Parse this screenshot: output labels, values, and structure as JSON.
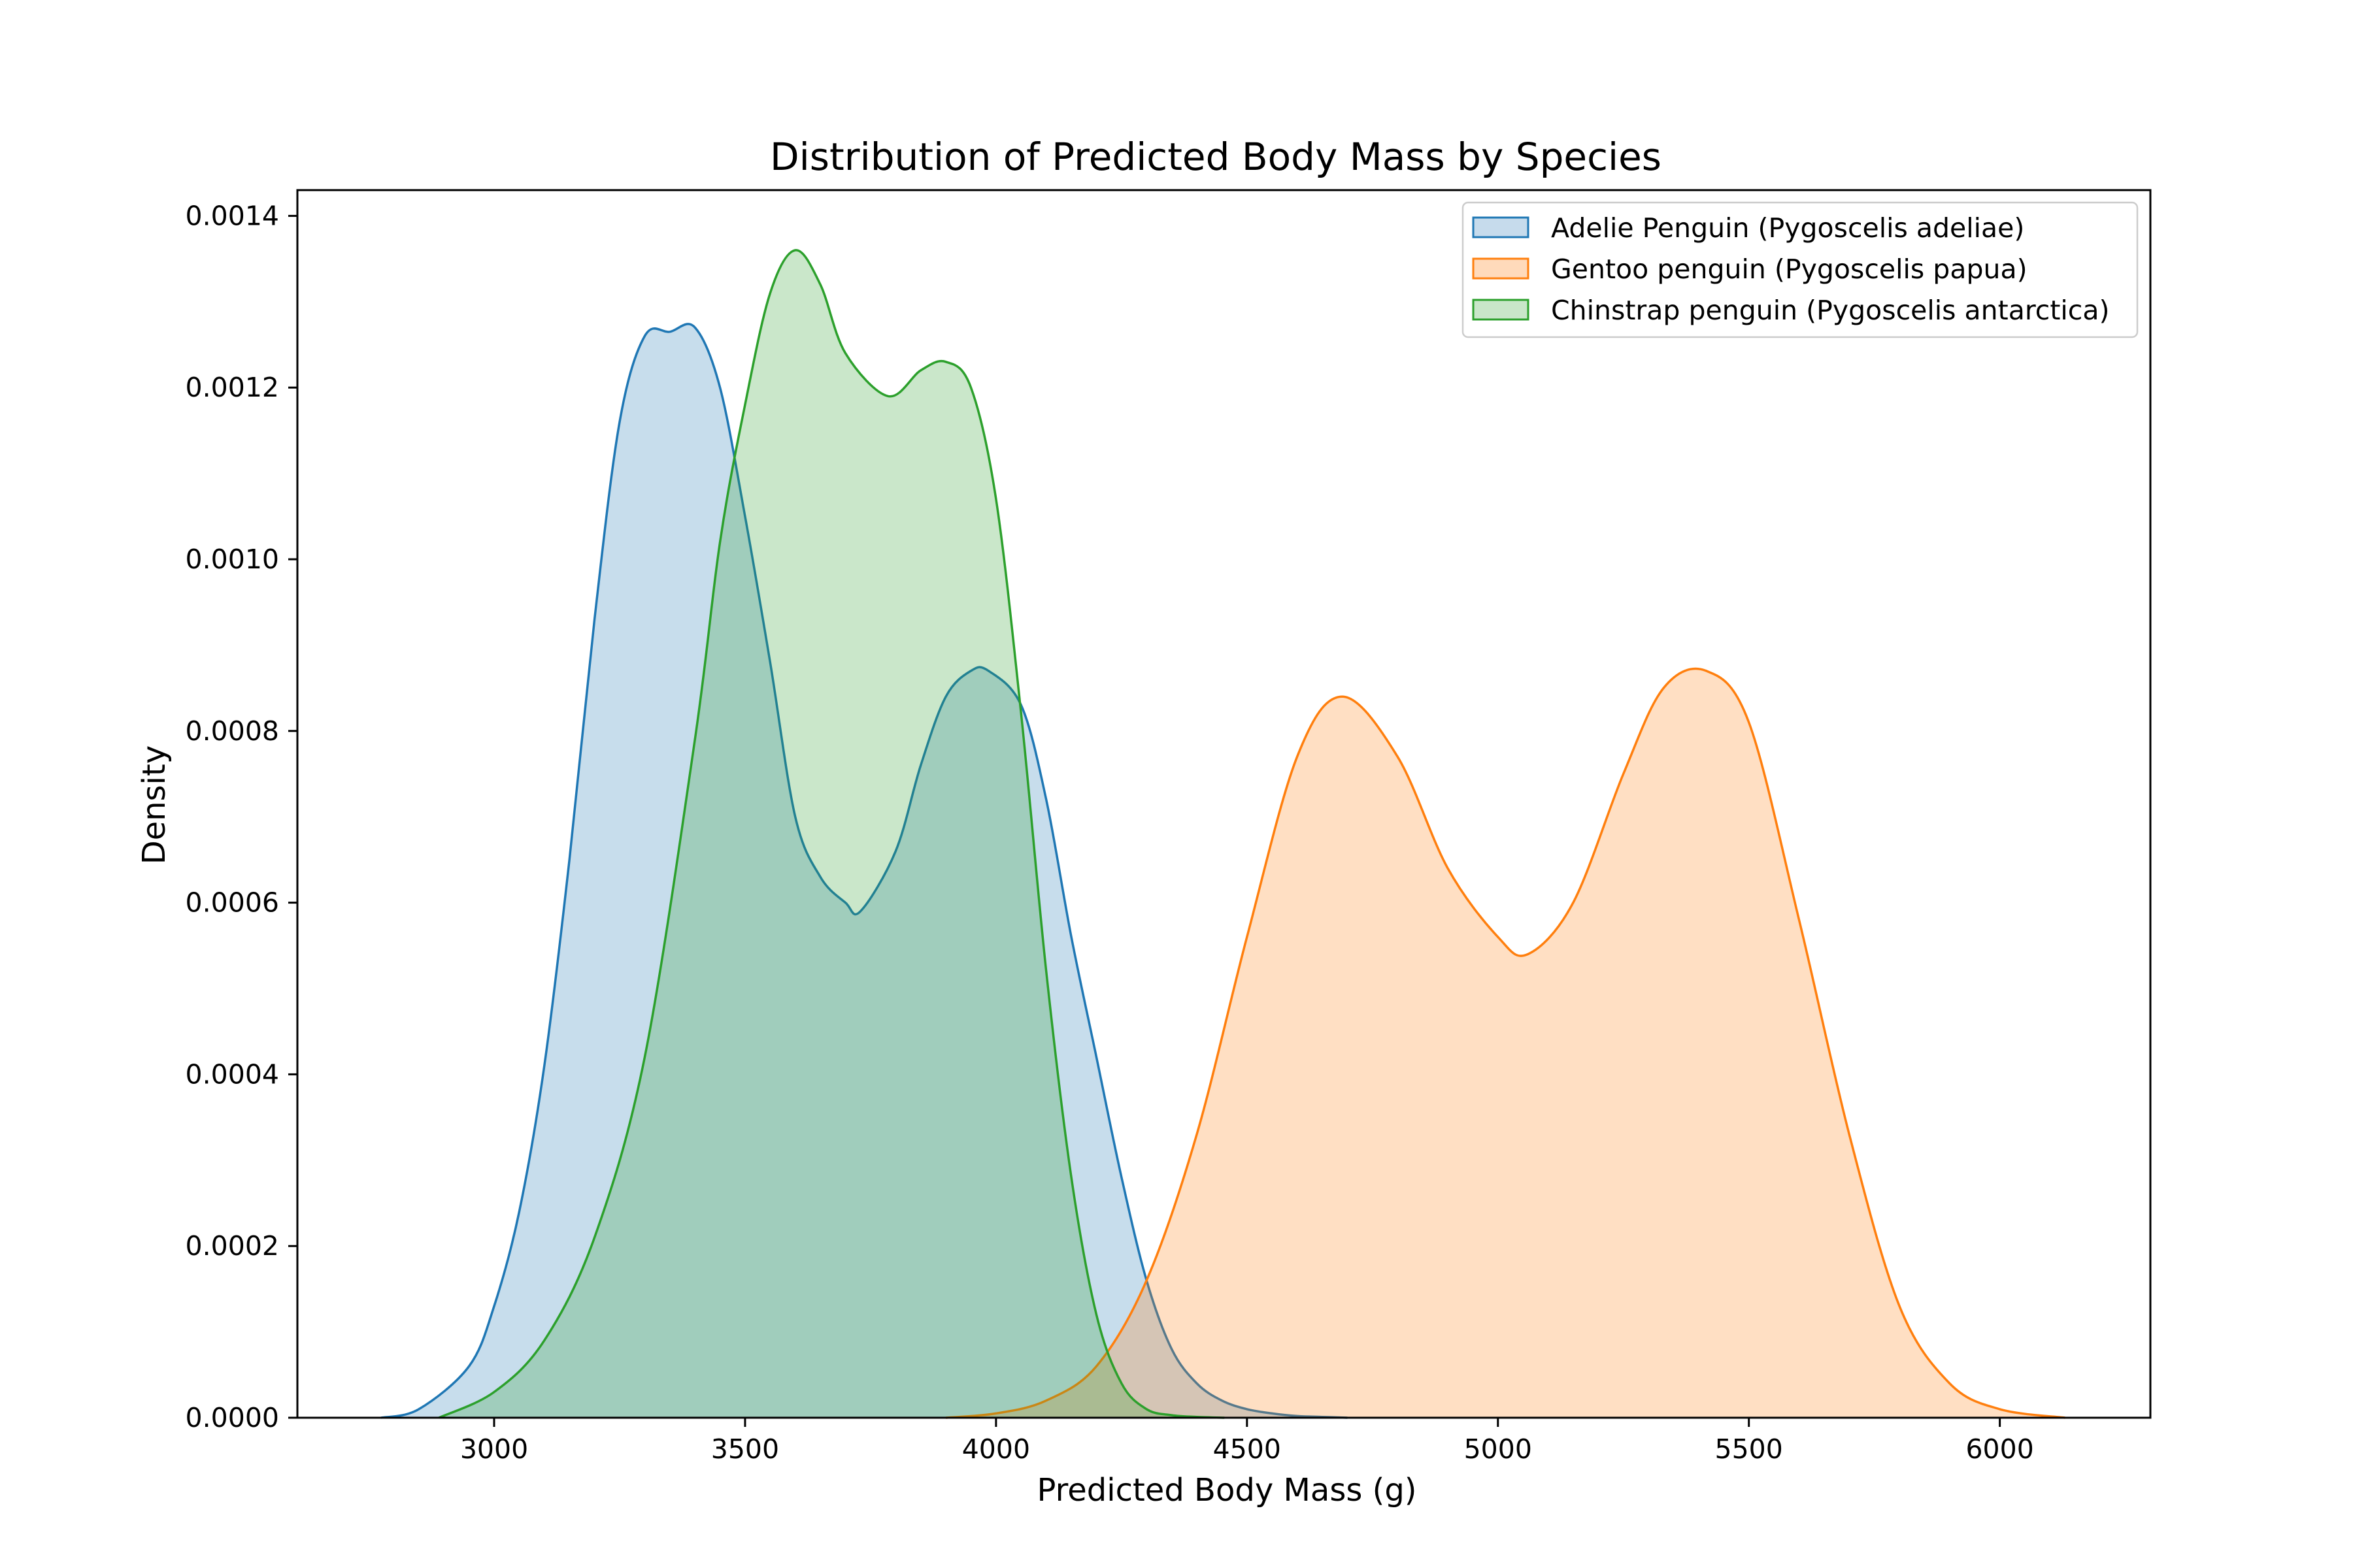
{
  "chart_data": {
    "type": "area",
    "title": "Distribution of Predicted Body Mass by Species",
    "xlabel": "Predicted Body Mass (g)",
    "ylabel": "Density",
    "xlim": [
      2608,
      6300
    ],
    "ylim": [
      0,
      0.00143
    ],
    "xticks": [
      3000,
      3500,
      4000,
      4500,
      5000,
      5500,
      6000
    ],
    "yticks": [
      0.0,
      0.0002,
      0.0004,
      0.0006,
      0.0008,
      0.001,
      0.0012,
      0.0014
    ],
    "ytick_labels": [
      "0.0000",
      "0.0002",
      "0.0004",
      "0.0006",
      "0.0008",
      "0.0010",
      "0.0012",
      "0.0014"
    ],
    "grid": false,
    "legend_position": "top-right",
    "series": [
      {
        "name": "Adelie Penguin (Pygoscelis adeliae)",
        "color": "#1f77b4",
        "fill": "#c6dbec",
        "x": [
          2775,
          2850,
          2950,
          3000,
          3050,
          3100,
          3150,
          3200,
          3250,
          3300,
          3350,
          3400,
          3450,
          3500,
          3550,
          3600,
          3650,
          3700,
          3730,
          3800,
          3850,
          3900,
          3950,
          3985,
          4050,
          4100,
          4150,
          4200,
          4250,
          4300,
          4350,
          4400,
          4450,
          4500,
          4550,
          4600,
          4650,
          4700
        ],
        "y": [
          0.0,
          1e-05,
          6e-05,
          0.00013,
          0.00024,
          0.00041,
          0.00065,
          0.00093,
          0.00116,
          0.00126,
          0.001265,
          0.00127,
          0.0012,
          0.00105,
          0.00088,
          0.0007,
          0.00063,
          0.0006,
          0.00059,
          0.00066,
          0.00076,
          0.00084,
          0.00087,
          0.00087,
          0.00083,
          0.00072,
          0.00056,
          0.00042,
          0.00028,
          0.00016,
          8e-05,
          4e-05,
          2e-05,
          1e-05,
          5e-06,
          2e-06,
          1e-06,
          0.0
        ]
      },
      {
        "name": "Gentoo penguin (Pygoscelis papua)",
        "color": "#ff7f0e",
        "fill": "#ffdabb",
        "x": [
          3900,
          4000,
          4100,
          4200,
          4300,
          4400,
          4500,
          4600,
          4690,
          4800,
          4900,
          5000,
          5060,
          5150,
          5250,
          5330,
          5415,
          5500,
          5600,
          5700,
          5800,
          5900,
          6000,
          6130
        ],
        "y": [
          0.0,
          5e-06,
          2e-05,
          6e-05,
          0.00016,
          0.00033,
          0.00056,
          0.00077,
          0.00084,
          0.00077,
          0.00064,
          0.00056,
          0.00054,
          0.0006,
          0.00075,
          0.00085,
          0.00087,
          0.00081,
          0.00058,
          0.00033,
          0.00013,
          4e-05,
          1e-05,
          0.0
        ]
      },
      {
        "name": "Chinstrap penguin (Pygoscelis antarctica)",
        "color": "#2ca02c",
        "fill": "#c9e6c9",
        "x": [
          2890,
          3000,
          3100,
          3200,
          3300,
          3400,
          3450,
          3500,
          3550,
          3600,
          3650,
          3700,
          3785,
          3850,
          3900,
          3950,
          4000,
          4050,
          4100,
          4150,
          4200,
          4250,
          4300,
          4350,
          4400,
          4455
        ],
        "y": [
          0.0,
          3e-05,
          9e-05,
          0.00021,
          0.00042,
          0.00079,
          0.00102,
          0.00118,
          0.00131,
          0.00136,
          0.00132,
          0.00124,
          0.00119,
          0.00122,
          0.00123,
          0.0012,
          0.00107,
          0.00082,
          0.00052,
          0.00028,
          0.00012,
          4e-05,
          1e-05,
          3e-06,
          1e-06,
          0.0
        ]
      }
    ]
  }
}
